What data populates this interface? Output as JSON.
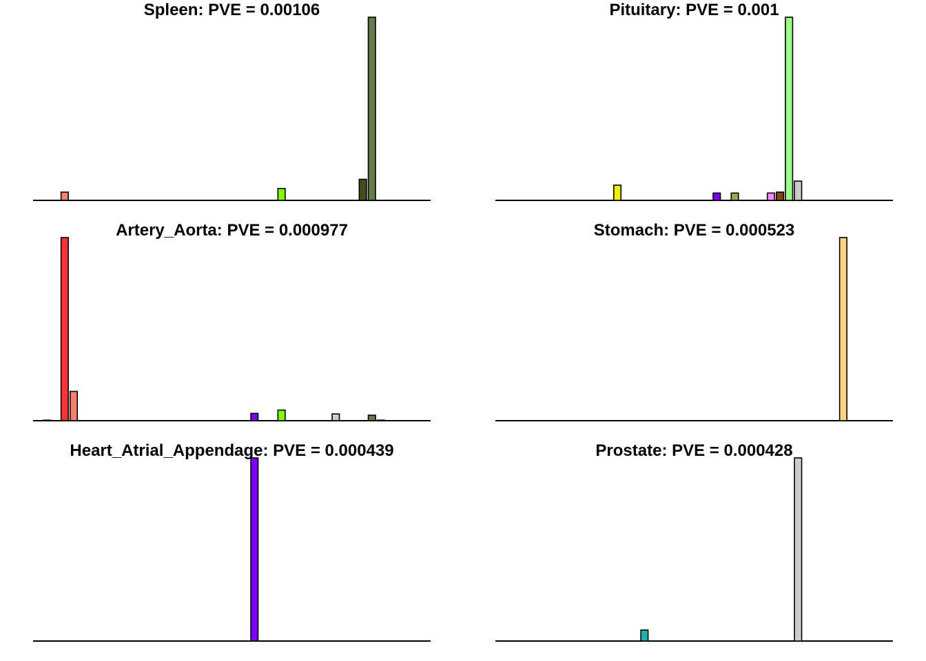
{
  "chart_data": [
    {
      "type": "bar",
      "title": "Spleen: PVE = 0.00106",
      "categories": 44,
      "ylim": [
        0,
        1
      ],
      "bars": [
        {
          "index": 3,
          "value": 0.045,
          "color": "#FA8072"
        },
        {
          "index": 27,
          "value": 0.065,
          "color": "#7FFF00"
        },
        {
          "index": 36,
          "value": 0.115,
          "color": "#4B4A1A"
        },
        {
          "index": 37,
          "value": 1.0,
          "color": "#657B4A"
        }
      ]
    },
    {
      "type": "bar",
      "title": "Pituitary: PVE = 0.001",
      "categories": 44,
      "ylim": [
        0,
        1
      ],
      "bars": [
        {
          "index": 13,
          "value": 0.083,
          "color": "#EEEE00"
        },
        {
          "index": 24,
          "value": 0.04,
          "color": "#7A00FF"
        },
        {
          "index": 26,
          "value": 0.04,
          "color": "#94A84F"
        },
        {
          "index": 30,
          "value": 0.04,
          "color": "#FF88FF"
        },
        {
          "index": 31,
          "value": 0.045,
          "color": "#8B4513"
        },
        {
          "index": 32,
          "value": 1.0,
          "color": "#99FF88"
        },
        {
          "index": 33,
          "value": 0.105,
          "color": "#CCCCCC"
        }
      ]
    },
    {
      "type": "bar",
      "title": "Artery_Aorta: PVE = 0.000977",
      "categories": 44,
      "ylim": [
        0,
        1
      ],
      "bars": [
        {
          "index": 1,
          "value": 0.003,
          "color": "#888888"
        },
        {
          "index": 3,
          "value": 1.0,
          "color": "#FF3333"
        },
        {
          "index": 4,
          "value": 0.16,
          "color": "#FA8072"
        },
        {
          "index": 24,
          "value": 0.04,
          "color": "#7A00FF"
        },
        {
          "index": 27,
          "value": 0.058,
          "color": "#7FFF00"
        },
        {
          "index": 33,
          "value": 0.037,
          "color": "#CCCCCC"
        },
        {
          "index": 37,
          "value": 0.03,
          "color": "#657B4A"
        },
        {
          "index": 38,
          "value": 0.003,
          "color": "#888888"
        }
      ]
    },
    {
      "type": "bar",
      "title": "Stomach: PVE = 0.000523",
      "categories": 44,
      "ylim": [
        0,
        1
      ],
      "bars": [
        {
          "index": 38,
          "value": 1.0,
          "color": "#FFD37F"
        }
      ]
    },
    {
      "type": "bar",
      "title": "Heart_Atrial_Appendage: PVE = 0.000439",
      "categories": 44,
      "ylim": [
        0,
        1
      ],
      "bars": [
        {
          "index": 24,
          "value": 1.0,
          "color": "#7A00FF"
        }
      ]
    },
    {
      "type": "bar",
      "title": "Prostate: PVE = 0.000428",
      "categories": 44,
      "ylim": [
        0,
        1
      ],
      "bars": [
        {
          "index": 16,
          "value": 0.06,
          "color": "#20B2AA"
        },
        {
          "index": 33,
          "value": 1.0,
          "color": "#CCCCCC"
        }
      ]
    }
  ]
}
